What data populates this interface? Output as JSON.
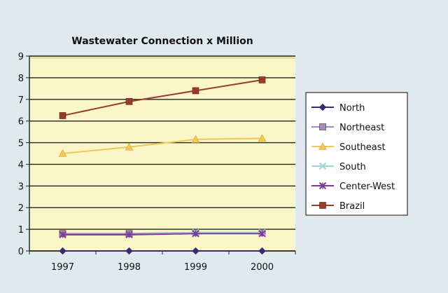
{
  "chart_data": {
    "type": "line",
    "title": "Wastewater Connection x Million",
    "xlabel": "",
    "ylabel": "",
    "categories": [
      "1997",
      "1998",
      "1999",
      "2000"
    ],
    "ylim": [
      0,
      9
    ],
    "yticks": [
      "0",
      "1",
      "2",
      "3",
      "4",
      "5",
      "6",
      "7",
      "8",
      "9"
    ],
    "grid": true,
    "legend_position": "right",
    "series": [
      {
        "name": "North",
        "values": [
          0.0,
          0.0,
          0.0,
          0.0
        ],
        "color": "#3d2a6e",
        "marker": "diamond"
      },
      {
        "name": "Northeast",
        "values": [
          0.8,
          0.8,
          0.85,
          0.85
        ],
        "color": "#9b8fc4",
        "marker": "square"
      },
      {
        "name": "Southeast",
        "values": [
          4.5,
          4.8,
          5.15,
          5.2
        ],
        "color": "#f0c75a",
        "marker": "triangle"
      },
      {
        "name": "South",
        "values": [
          0.75,
          0.75,
          0.85,
          0.85
        ],
        "color": "#9fd7d6",
        "marker": "x"
      },
      {
        "name": "Center-West",
        "values": [
          0.75,
          0.75,
          0.8,
          0.8
        ],
        "color": "#7d3d96",
        "marker": "star"
      },
      {
        "name": "Brazil",
        "values": [
          6.25,
          6.9,
          7.4,
          7.9
        ],
        "color": "#9b3a2e",
        "marker": "square"
      }
    ]
  }
}
